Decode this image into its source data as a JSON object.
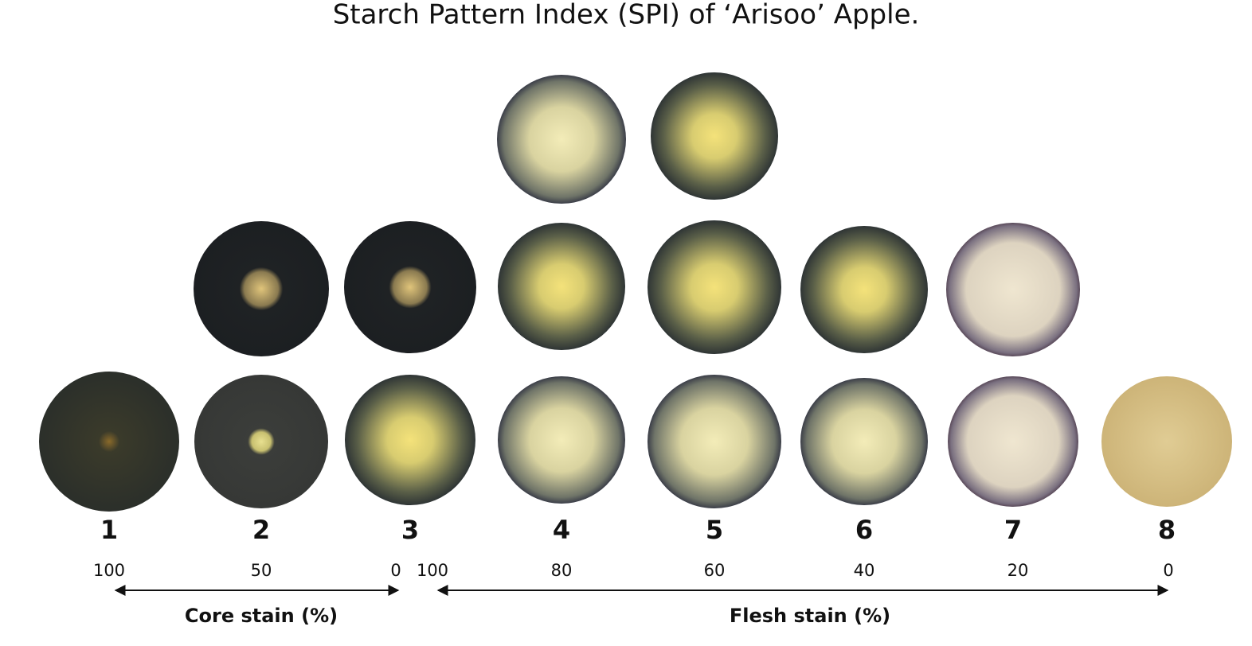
{
  "title": "Starch Pattern Index (SPI) of ‘Arisoo’ Apple.",
  "indices": [
    "1",
    "2",
    "3",
    "4",
    "5",
    "6",
    "7",
    "8"
  ],
  "core_scale": {
    "label": "Core stain (%)",
    "ticks": [
      "100",
      "50",
      "0"
    ]
  },
  "flesh_scale": {
    "label": "Flesh stain (%)",
    "ticks": [
      "100",
      "80",
      "60",
      "40",
      "20",
      "0"
    ]
  }
}
